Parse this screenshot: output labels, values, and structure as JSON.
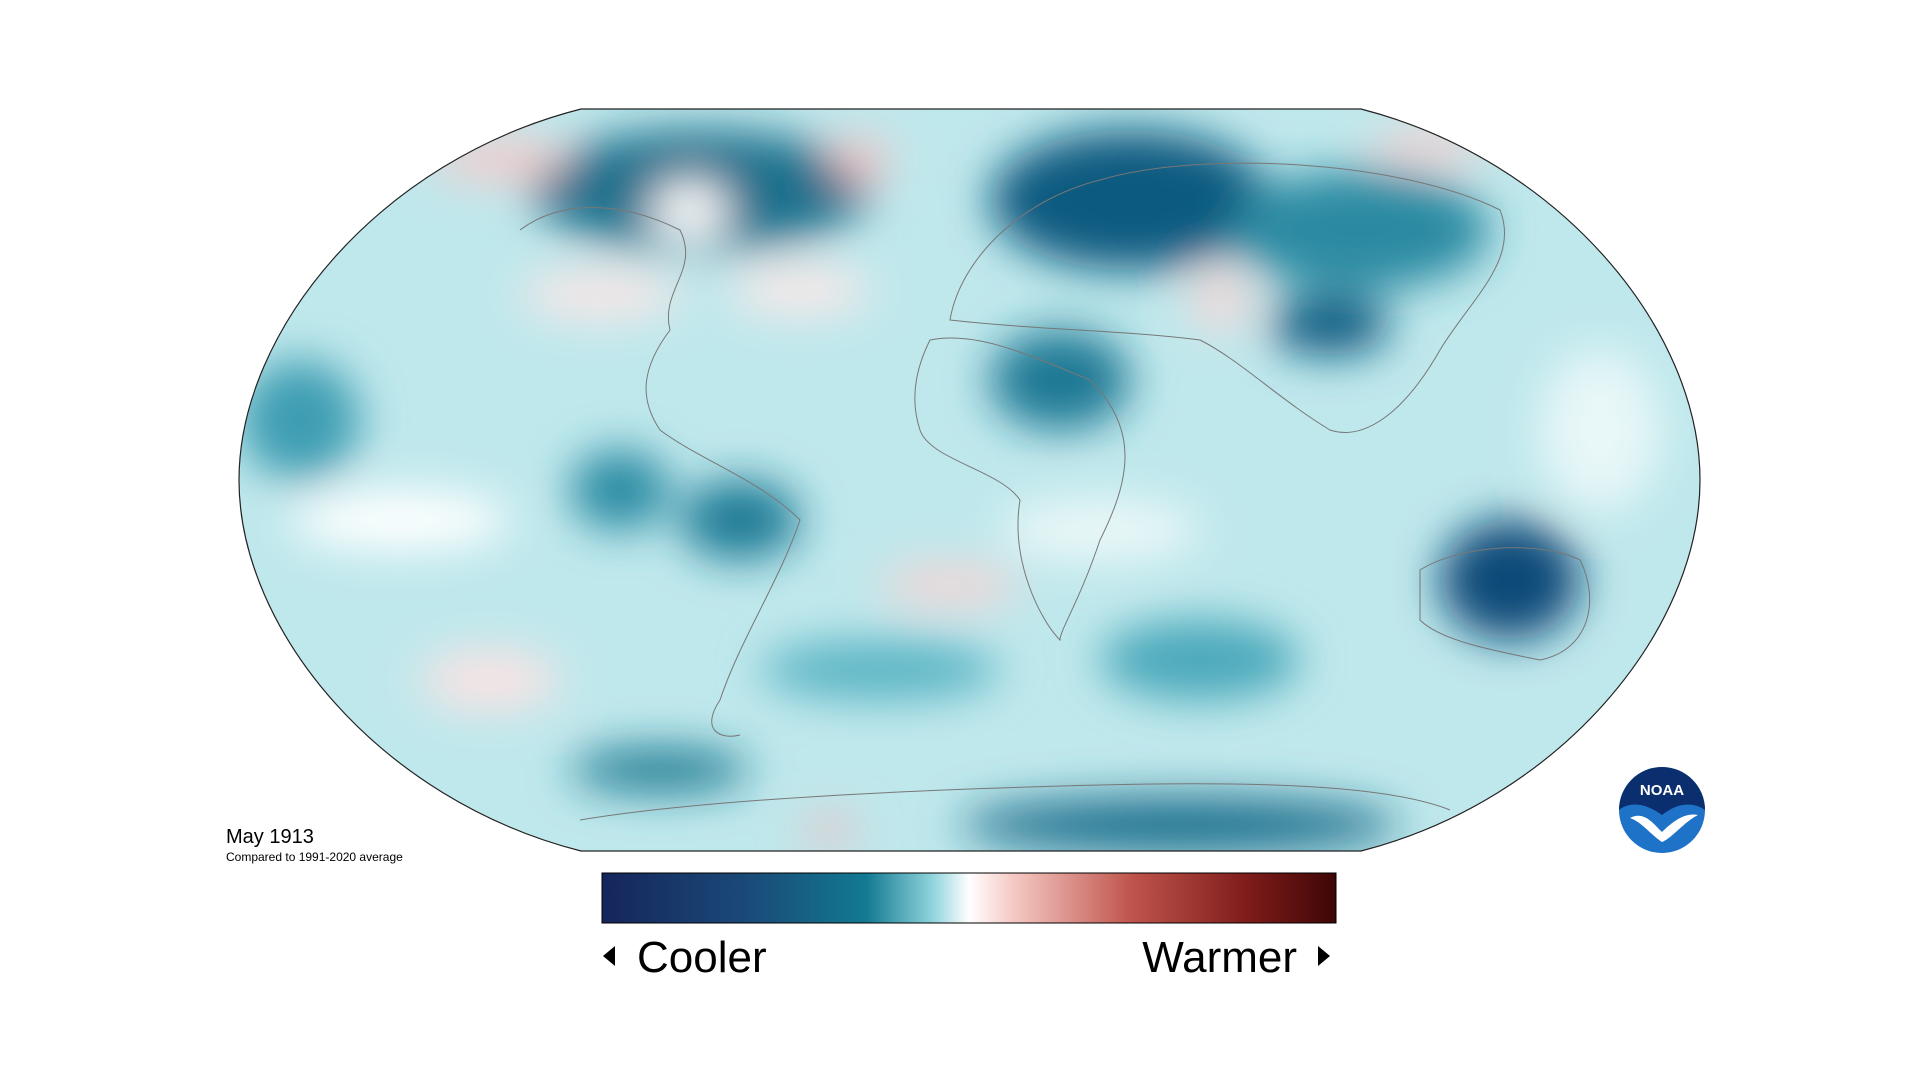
{
  "map": {
    "title": "May 1913",
    "subtitle": "Compared to 1991-2020 average"
  },
  "legend": {
    "low_label": "Cooler",
    "high_label": "Warmer"
  },
  "logo": {
    "text": "NOAA"
  }
}
